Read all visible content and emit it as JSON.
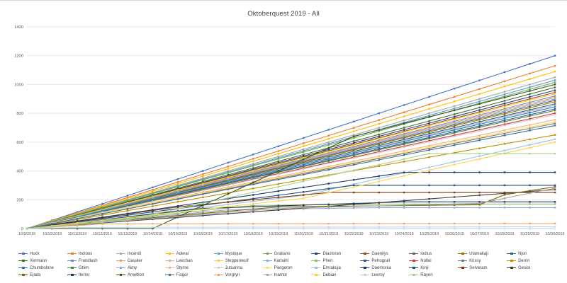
{
  "window": {
    "title": "Oktoberquest 2019 - All"
  },
  "chart_data": {
    "type": "line",
    "title": "Oktoberquest 2019 - All",
    "xlabel": "",
    "ylabel": "",
    "x": [
      "10/9/2019",
      "10/10/2019",
      "10/11/2019",
      "10/12/2019",
      "10/13/2019",
      "10/14/2019",
      "10/15/2019",
      "10/16/2019",
      "10/17/2019",
      "10/18/2019",
      "10/19/2019",
      "10/20/2019",
      "10/21/2019",
      "10/22/2019",
      "10/23/2019",
      "10/24/2019",
      "10/25/2019",
      "10/26/2019",
      "10/27/2019",
      "10/28/2019",
      "10/29/2019",
      "10/30/2019"
    ],
    "ylim": [
      0,
      1400
    ],
    "ytick_step": 200,
    "yticks": [
      0,
      200,
      400,
      600,
      800,
      1000,
      1200,
      1400
    ],
    "grid": true,
    "legend_position": "bottom",
    "colors": {
      "axis_text": "#595959",
      "grid_line": "#e8e8e8",
      "axis_line": "#c9c9c9",
      "title_text": "#404040"
    },
    "series": [
      {
        "name": "Huck",
        "color": "#4472C4",
        "keyframes": [
          [
            0,
            0
          ],
          [
            21,
            1200
          ]
        ]
      },
      {
        "name": "Indious",
        "color": "#ED7D31",
        "keyframes": [
          [
            0,
            0
          ],
          [
            21,
            1130
          ]
        ]
      },
      {
        "name": "Incendi",
        "color": "#A5A5A5",
        "keyframes": [
          [
            0,
            0
          ],
          [
            21,
            1050
          ]
        ]
      },
      {
        "name": "Aderal",
        "color": "#FFC000",
        "keyframes": [
          [
            0,
            0
          ],
          [
            21,
            1090
          ]
        ]
      },
      {
        "name": "Mystique",
        "color": "#5B9BD5",
        "keyframes": [
          [
            0,
            0
          ],
          [
            21,
            1030
          ]
        ]
      },
      {
        "name": "Gratiano",
        "color": "#70AD47",
        "keyframes": [
          [
            0,
            0
          ],
          [
            21,
            1015
          ]
        ]
      },
      {
        "name": "Diastoran",
        "color": "#264478",
        "keyframes": [
          [
            0,
            0
          ],
          [
            21,
            960
          ]
        ]
      },
      {
        "name": "Gaenilys",
        "color": "#9E480E",
        "keyframes": [
          [
            0,
            0
          ],
          [
            21,
            945
          ]
        ]
      },
      {
        "name": "Iodius",
        "color": "#636363",
        "keyframes": [
          [
            0,
            0
          ],
          [
            21,
            890
          ]
        ]
      },
      {
        "name": "Utamakaji",
        "color": "#997300",
        "keyframes": [
          [
            0,
            0
          ],
          [
            21,
            880
          ]
        ]
      },
      {
        "name": "Njori",
        "color": "#255E91",
        "keyframes": [
          [
            0,
            0
          ],
          [
            21,
            865
          ]
        ]
      },
      {
        "name": "Xermann",
        "color": "#43682B",
        "keyframes": [
          [
            0,
            0
          ],
          [
            21,
            980
          ]
        ]
      },
      {
        "name": "Frandlash",
        "color": "#698ED0",
        "keyframes": [
          [
            0,
            0
          ],
          [
            21,
            920
          ]
        ]
      },
      {
        "name": "Gavaler",
        "color": "#F1975A",
        "keyframes": [
          [
            0,
            0
          ],
          [
            21,
            910
          ]
        ]
      },
      {
        "name": "Leechan",
        "color": "#B7B7B7",
        "keyframes": [
          [
            0,
            0
          ],
          [
            21,
            855
          ]
        ]
      },
      {
        "name": "Steppenwulf",
        "color": "#FFCD33",
        "keyframes": [
          [
            0,
            0
          ],
          [
            21,
            935
          ]
        ]
      },
      {
        "name": "Kamahl",
        "color": "#7CAFDD",
        "keyframes": [
          [
            0,
            0
          ],
          [
            21,
            900
          ]
        ]
      },
      {
        "name": "Phen",
        "color": "#8CC168",
        "keyframes": [
          [
            0,
            0
          ],
          [
            9,
            160
          ],
          [
            14,
            170
          ],
          [
            21,
            170
          ]
        ]
      },
      {
        "name": "Petrograil",
        "color": "#2F5597",
        "keyframes": [
          [
            0,
            0
          ],
          [
            21,
            830
          ]
        ]
      },
      {
        "name": "Noltei",
        "color": "#D13438",
        "keyframes": [
          [
            0,
            0
          ],
          [
            21,
            800
          ]
        ]
      },
      {
        "name": "Krissy",
        "color": "#7B7B7B",
        "keyframes": [
          [
            0,
            0
          ],
          [
            21,
            730
          ]
        ]
      },
      {
        "name": "Derrin",
        "color": "#BF8F00",
        "keyframes": [
          [
            0,
            0
          ],
          [
            21,
            650
          ]
        ]
      },
      {
        "name": "Chumbolone",
        "color": "#2E75B6",
        "keyframes": [
          [
            0,
            0
          ],
          [
            21,
            845
          ]
        ]
      },
      {
        "name": "Ghim",
        "color": "#538135",
        "keyframes": [
          [
            0,
            0
          ],
          [
            21,
            820
          ]
        ]
      },
      {
        "name": "Aimy",
        "color": "#8FAADC",
        "keyframes": [
          [
            0,
            0
          ],
          [
            8,
            130
          ],
          [
            14,
            145
          ],
          [
            21,
            145
          ]
        ]
      },
      {
        "name": "Styrne",
        "color": "#F4B183",
        "keyframes": [
          [
            0,
            0
          ],
          [
            21,
            755
          ]
        ]
      },
      {
        "name": "Jutsanna",
        "color": "#CFCFCF",
        "keyframes": [
          [
            0,
            0
          ],
          [
            21,
            790
          ]
        ]
      },
      {
        "name": "Piergeron",
        "color": "#FFD966",
        "keyframes": [
          [
            0,
            0
          ],
          [
            21,
            740
          ]
        ]
      },
      {
        "name": "Emrakuja",
        "color": "#9DC3E6",
        "keyframes": [
          [
            0,
            0
          ],
          [
            11,
            230
          ],
          [
            21,
            620
          ]
        ]
      },
      {
        "name": "Daemonia",
        "color": "#203864",
        "keyframes": [
          [
            0,
            0
          ],
          [
            7,
            140
          ],
          [
            15,
            185
          ],
          [
            21,
            185
          ]
        ]
      },
      {
        "name": "Kinji",
        "color": "#1F4E79",
        "keyframes": [
          [
            0,
            0
          ],
          [
            13,
            300
          ],
          [
            21,
            300
          ]
        ]
      },
      {
        "name": "Selveram",
        "color": "#843C0C",
        "keyframes": [
          [
            0,
            0
          ],
          [
            6,
            150
          ],
          [
            12,
            250
          ],
          [
            21,
            250
          ]
        ]
      },
      {
        "name": "Gesior",
        "color": "#404040",
        "keyframes": [
          [
            0,
            0
          ],
          [
            21,
            270
          ]
        ]
      },
      {
        "name": "Ejada",
        "color": "#806000",
        "keyframes": [
          [
            0,
            0
          ],
          [
            10,
            150
          ],
          [
            18,
            165
          ],
          [
            19,
            235
          ],
          [
            21,
            290
          ]
        ]
      },
      {
        "name": "Iterno",
        "color": "#1F3864",
        "keyframes": [
          [
            0,
            0
          ],
          [
            15,
            390
          ],
          [
            21,
            390
          ]
        ]
      },
      {
        "name": "Ametlion",
        "color": "#375623",
        "keyframes": [
          [
            0,
            0
          ],
          [
            5,
            0
          ],
          [
            13,
            640
          ],
          [
            21,
            1000
          ]
        ]
      },
      {
        "name": "Fisgor",
        "color": "#41719C",
        "keyframes": [
          [
            0,
            0
          ],
          [
            21,
            715
          ]
        ]
      },
      {
        "name": "Vorgryn",
        "color": "#F2A266",
        "keyframes": [
          [
            0,
            0
          ],
          [
            3,
            32
          ],
          [
            21,
            35
          ]
        ]
      },
      {
        "name": "Inamor",
        "color": "#A6A6A6",
        "keyframes": [
          [
            0,
            0
          ],
          [
            10,
            140
          ],
          [
            18,
            175
          ],
          [
            21,
            280
          ]
        ]
      },
      {
        "name": "Debian",
        "color": "#FFD34D",
        "keyframes": [
          [
            0,
            0
          ],
          [
            11,
            210
          ],
          [
            21,
            600
          ]
        ]
      },
      {
        "name": "Leeroy",
        "color": "#BDD7EE",
        "keyframes": [
          [
            0,
            0
          ],
          [
            2,
            8
          ],
          [
            21,
            12
          ]
        ]
      },
      {
        "name": "Rayen",
        "color": "#A9D18E",
        "keyframes": [
          [
            0,
            0
          ],
          [
            4,
            60
          ],
          [
            16,
            520
          ],
          [
            21,
            520
          ]
        ]
      }
    ]
  }
}
